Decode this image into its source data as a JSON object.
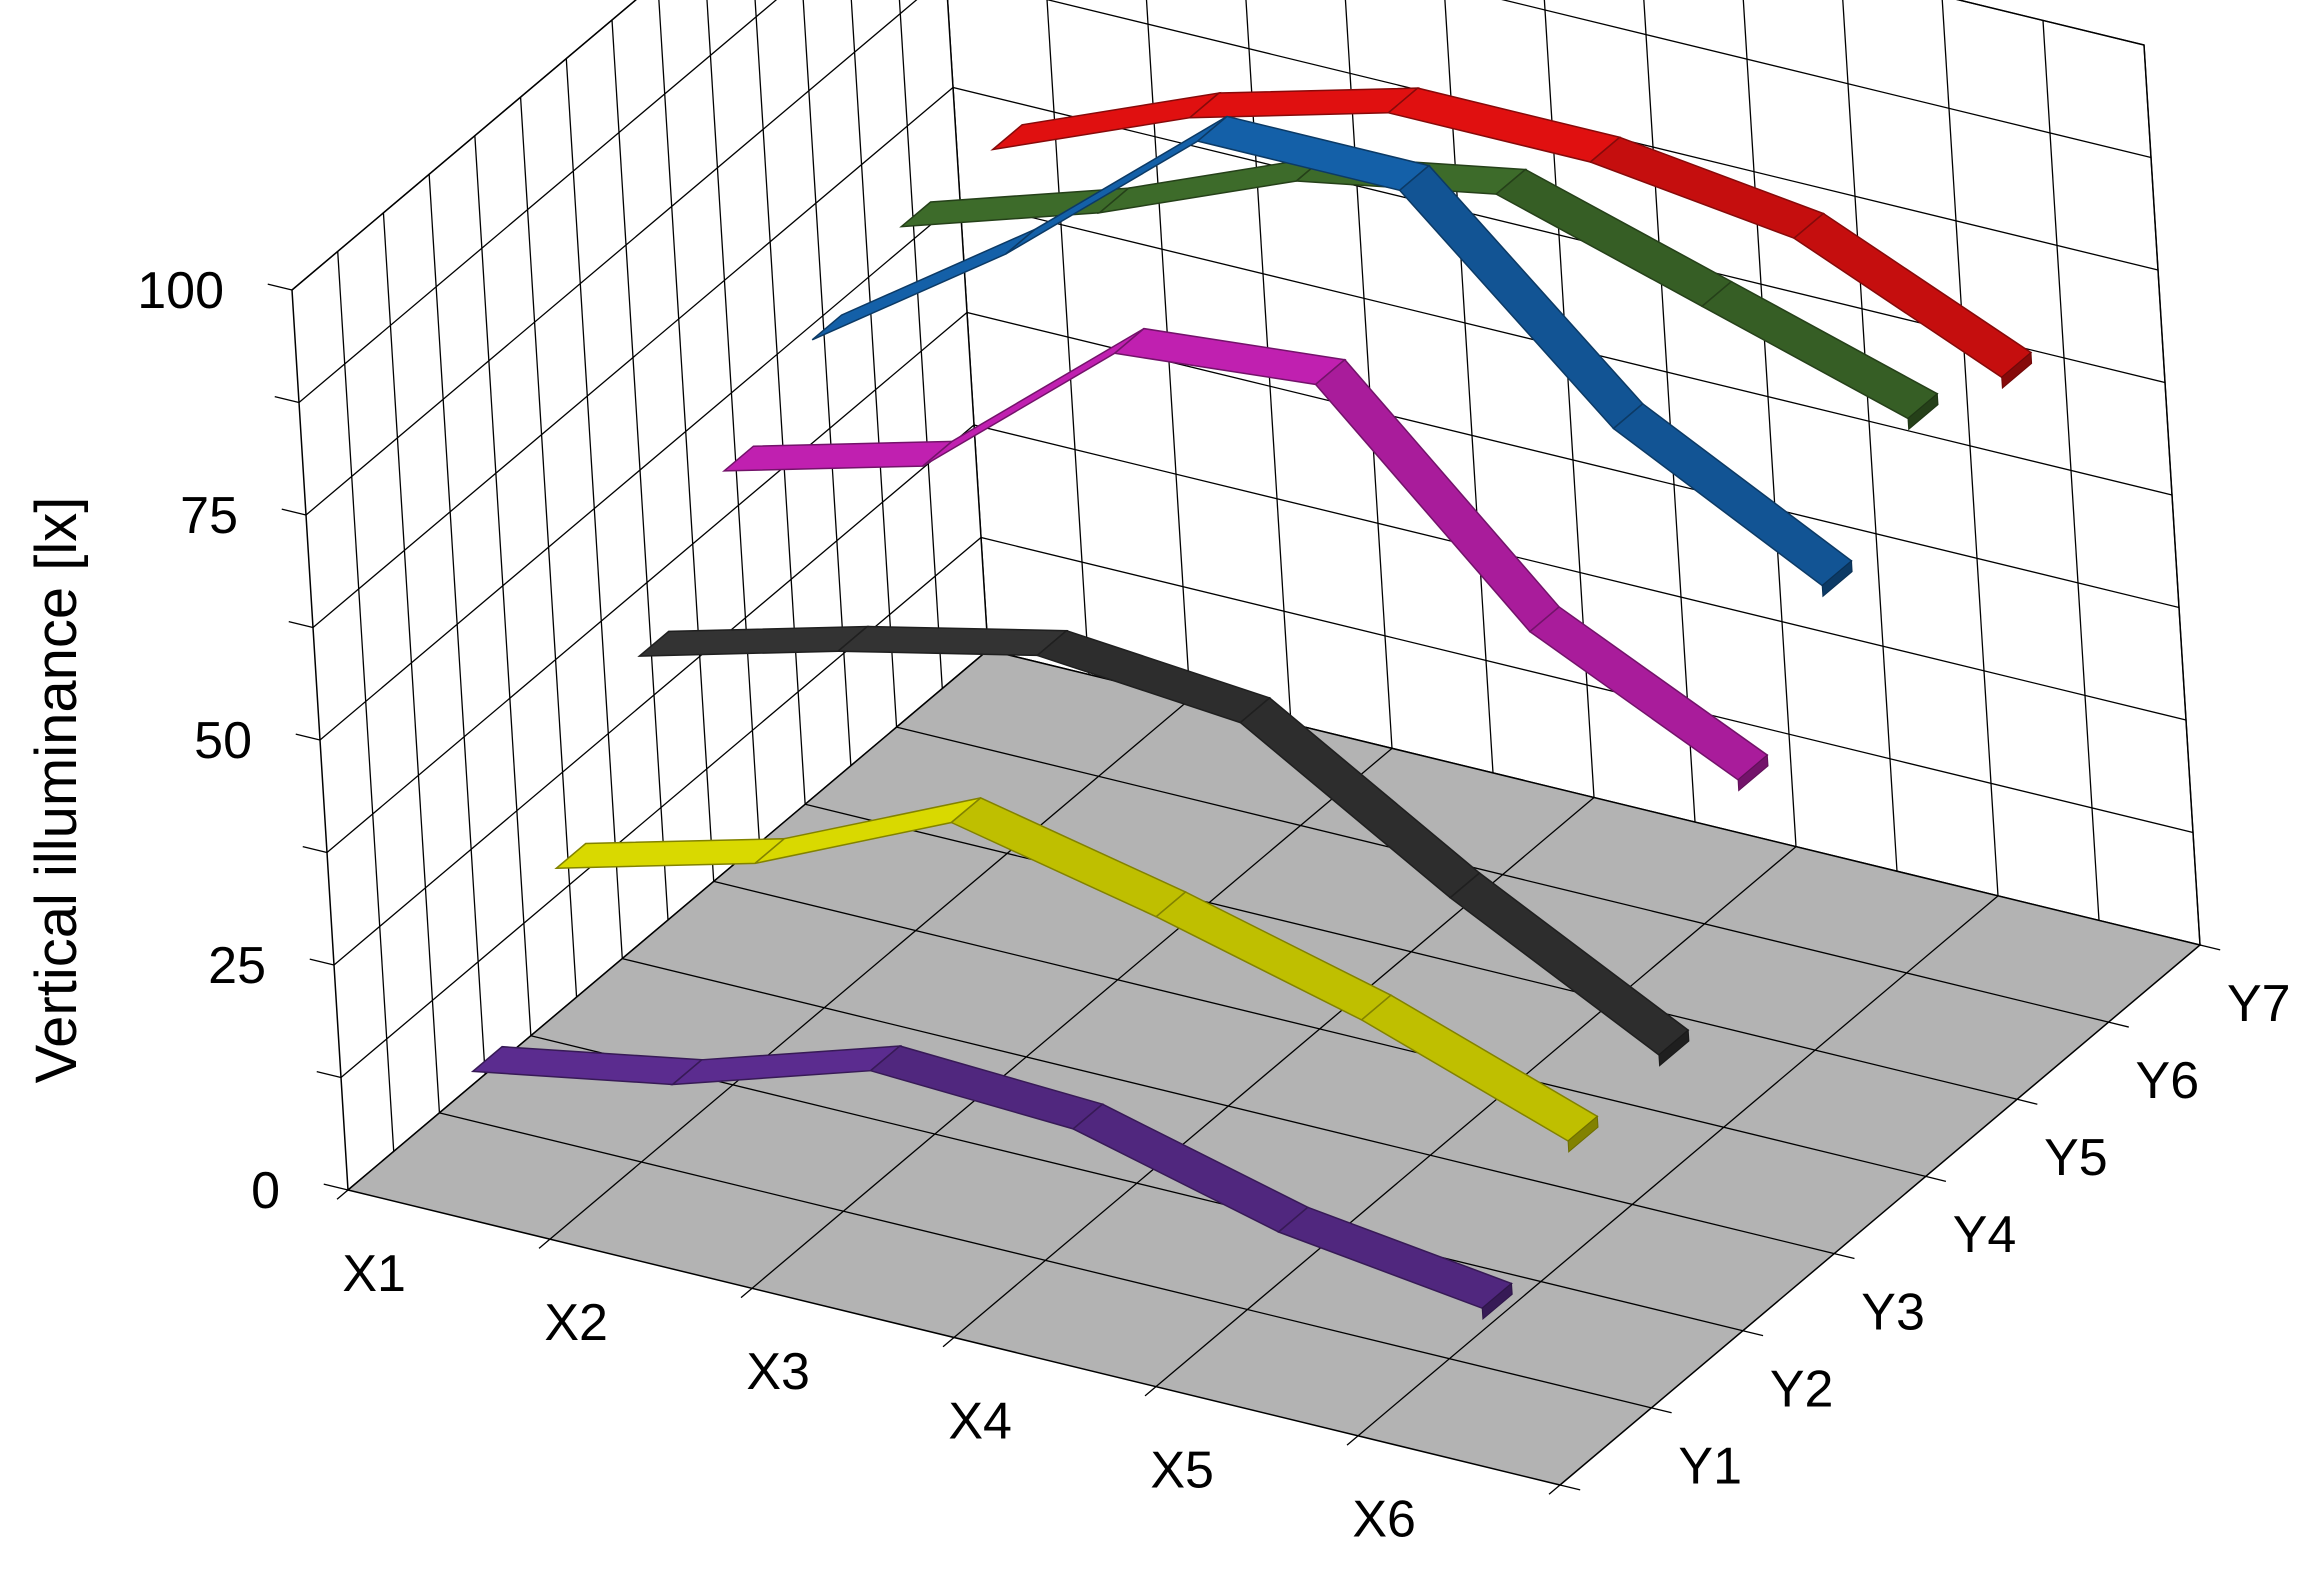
{
  "chart_data": {
    "type": "line",
    "variant": "3d-ribbon",
    "title": "",
    "zlabel": "Vertical illuminance [lx]",
    "zlim": [
      0,
      100
    ],
    "z_ticks": [
      "0",
      "25",
      "50",
      "75",
      "100"
    ],
    "x_categories": [
      "X1",
      "X2",
      "X3",
      "X4",
      "X5",
      "X6"
    ],
    "y_categories": [
      "Y1",
      "Y2",
      "Y3",
      "Y4",
      "Y5",
      "Y6",
      "Y7"
    ],
    "grid": true,
    "floor_color": "#b3b3b3",
    "series": [
      {
        "y": "Y1",
        "color": "#5b2c8f",
        "values": [
          13,
          17,
          24,
          23,
          17,
          14
        ]
      },
      {
        "y": "Y2",
        "color": "#d9d900",
        "values": [
          27,
          33,
          43,
          38,
          32,
          24
        ]
      },
      {
        "y": "Y3",
        "color": "#333333",
        "values": [
          42,
          48,
          53,
          51,
          37,
          25
        ]
      },
      {
        "y": "Y4",
        "color": "#c020b0",
        "values": [
          54,
          60,
          78,
          80,
          58,
          47
        ]
      },
      {
        "y": "Y5",
        "color": "#1460a8",
        "values": [
          60,
          75,
          93,
          93,
          72,
          60
        ]
      },
      {
        "y": "Y6",
        "color": "#3d6b2a",
        "values": [
          64,
          71,
          80,
          84,
          77,
          70
        ]
      },
      {
        "y": "Y7",
        "color": "#e01010",
        "values": [
          64,
          73,
          79,
          79,
          76,
          66
        ]
      }
    ]
  }
}
